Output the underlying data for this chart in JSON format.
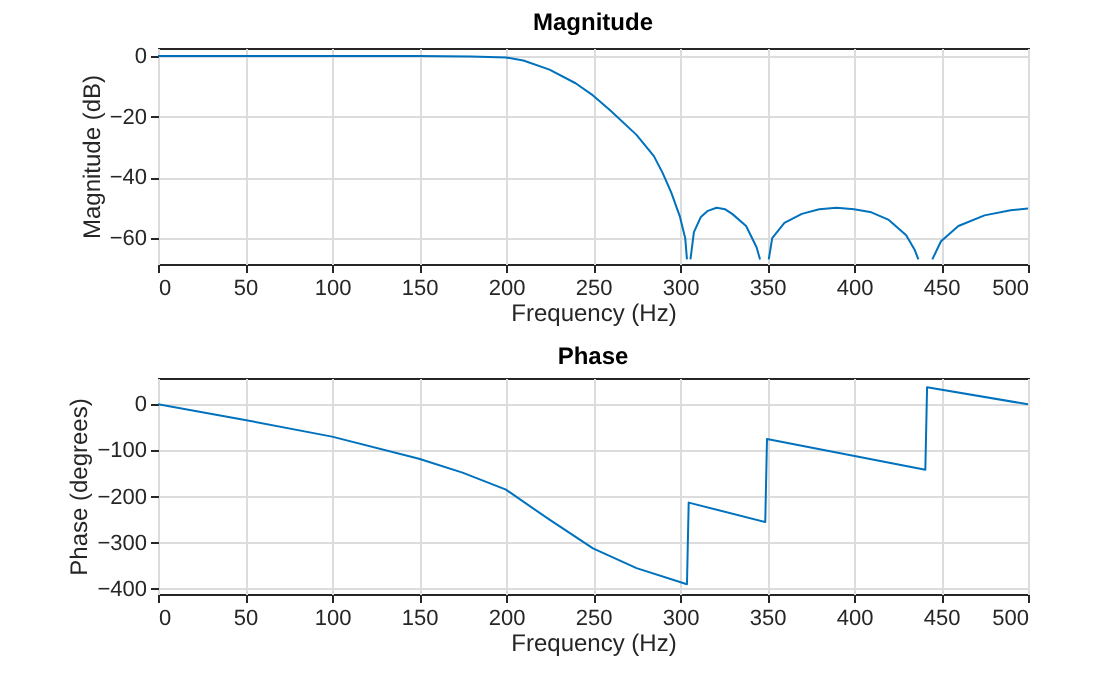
{
  "chart_data": [
    {
      "type": "line",
      "title": "Magnitude",
      "xlabel": "Frequency (Hz)",
      "ylabel": "Magnitude (dB)",
      "xlim": [
        0,
        500
      ],
      "ylim": [
        -68.5,
        2.6
      ],
      "xticks": [
        0,
        50,
        100,
        150,
        200,
        250,
        300,
        350,
        400,
        450,
        500
      ],
      "yticks": [
        -60,
        -40,
        -20,
        0
      ],
      "grid": true,
      "series": [
        {
          "color": "#0072bd",
          "x": [
            0,
            50,
            100,
            150,
            180,
            200,
            210,
            225,
            240,
            250,
            260,
            275,
            285,
            290,
            295,
            300,
            303,
            304,
            305,
            306,
            308,
            312,
            316,
            321,
            326,
            330,
            338,
            344,
            346,
            348,
            351,
            353,
            360,
            370,
            380,
            390,
            400,
            410,
            420,
            430,
            435,
            437,
            440,
            445,
            450,
            460,
            475,
            490,
            500
          ],
          "values": [
            0,
            0,
            0,
            0,
            -0.2,
            -0.5,
            -1.5,
            -4.5,
            -9,
            -13,
            -18,
            -26,
            -33,
            -38.5,
            -45,
            -53,
            -60,
            -67,
            null,
            -67,
            -58,
            -53,
            -51,
            -50,
            -50.5,
            -52,
            -56,
            -63,
            -67,
            null,
            -67,
            -60,
            -55,
            -52,
            -50.5,
            -50,
            -50.5,
            -51.5,
            -54,
            -59,
            -64,
            -67,
            null,
            -67,
            -61,
            -56,
            -52.5,
            -50.8,
            -50.2
          ]
        }
      ]
    },
    {
      "type": "line",
      "title": "Phase",
      "xlabel": "Frequency (Hz)",
      "ylabel": "Phase (degrees)",
      "xlim": [
        0,
        500
      ],
      "ylim": [
        -411,
        57
      ],
      "xticks": [
        0,
        50,
        100,
        150,
        200,
        250,
        300,
        350,
        400,
        450,
        500
      ],
      "yticks": [
        -400,
        -300,
        -200,
        -100,
        0
      ],
      "grid": true,
      "series": [
        {
          "color": "#0072bd",
          "x": [
            0,
            50,
            100,
            150,
            175,
            200,
            225,
            250,
            275,
            304,
            305,
            349,
            350,
            441,
            442,
            500
          ],
          "values": [
            0,
            -34,
            -70,
            -118,
            -148,
            -185,
            -250,
            -312,
            -355,
            -390,
            -213,
            -255,
            -75,
            -142,
            37,
            0
          ]
        }
      ]
    }
  ]
}
